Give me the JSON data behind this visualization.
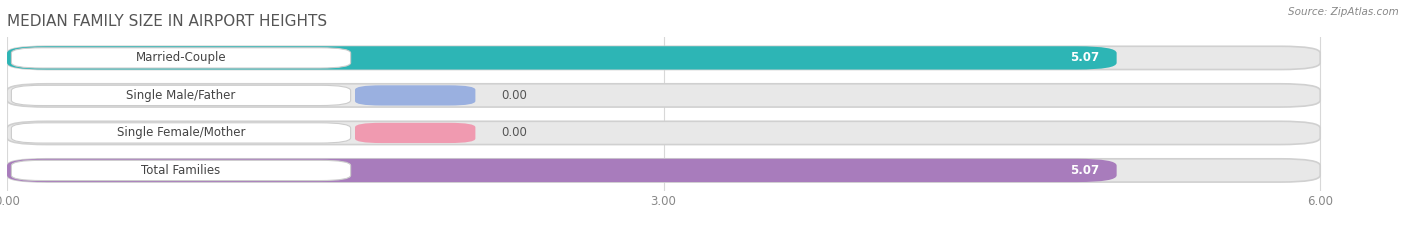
{
  "title": "MEDIAN FAMILY SIZE IN AIRPORT HEIGHTS",
  "source": "Source: ZipAtlas.com",
  "categories": [
    "Married-Couple",
    "Single Male/Father",
    "Single Female/Mother",
    "Total Families"
  ],
  "values": [
    5.07,
    0.0,
    0.0,
    5.07
  ],
  "bar_colors": [
    "#2db5b5",
    "#9ab0e0",
    "#f09ab0",
    "#a87cbc"
  ],
  "xlim": [
    0,
    6.36
  ],
  "data_xlim": [
    0,
    6.0
  ],
  "xticks": [
    0.0,
    3.0,
    6.0
  ],
  "xtick_labels": [
    "0.00",
    "3.00",
    "6.00"
  ],
  "background_color": "#ffffff",
  "bar_bg_color": "#e8e8e8",
  "title_fontsize": 11,
  "label_fontsize": 8.5,
  "value_fontsize": 8.5,
  "bar_height": 0.62,
  "bar_gap": 0.38
}
